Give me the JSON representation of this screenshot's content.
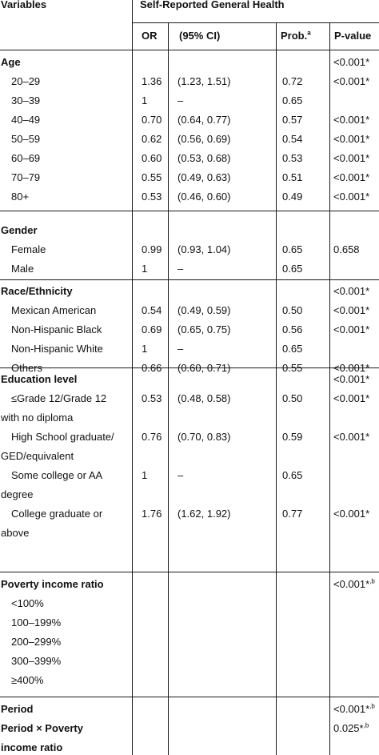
{
  "header": {
    "variables": "Variables",
    "group": "Self-Reported General Health",
    "or": "OR",
    "ci": "(95% CI)",
    "prob": "Prob.",
    "prob_sup": "a",
    "pvalue": "P-value"
  },
  "sections": [
    {
      "title": "Age",
      "title_p": "<0.001*",
      "rows": [
        {
          "label": "20–29",
          "or": "1.36",
          "ci": "(1.23, 1.51)",
          "prob": "0.72",
          "p": "<0.001*"
        },
        {
          "label": "30–39",
          "or": "1",
          "ci": "–",
          "prob": "0.65",
          "p": ""
        },
        {
          "label": "40–49",
          "or": "0.70",
          "ci": "(0.64, 0.77)",
          "prob": "0.57",
          "p": "<0.001*"
        },
        {
          "label": "50–59",
          "or": "0.62",
          "ci": "(0.56, 0.69)",
          "prob": "0.54",
          "p": "<0.001*"
        },
        {
          "label": "60–69",
          "or": "0.60",
          "ci": "(0.53, 0.68)",
          "prob": "0.53",
          "p": "<0.001*"
        },
        {
          "label": "70–79",
          "or": "0.55",
          "ci": "(0.49, 0.63)",
          "prob": "0.51",
          "p": "<0.001*"
        },
        {
          "label": "80+",
          "or": "0.53",
          "ci": "(0.46, 0.60)",
          "prob": "0.49",
          "p": "<0.001*"
        }
      ]
    },
    {
      "title": "Gender",
      "title_p": "",
      "rows": [
        {
          "label": "Female",
          "or": "0.99",
          "ci": "(0.93, 1.04)",
          "prob": "0.65",
          "p": "0.658"
        },
        {
          "label": "Male",
          "or": "1",
          "ci": "–",
          "prob": "0.65",
          "p": ""
        }
      ]
    },
    {
      "title": "Race/Ethnicity",
      "title_p": "<0.001*",
      "rows": [
        {
          "label": "Mexican American",
          "or": "0.54",
          "ci": "(0.49, 0.59)",
          "prob": "0.50",
          "p": "<0.001*"
        },
        {
          "label": "Non-Hispanic Black",
          "or": "0.69",
          "ci": "(0.65, 0.75)",
          "prob": "0.56",
          "p": "<0.001*"
        },
        {
          "label": "Non-Hispanic White",
          "or": "1",
          "ci": "–",
          "prob": "0.65",
          "p": ""
        },
        {
          "label": "Others",
          "or": "0.66",
          "ci": "(0.60, 0.71)",
          "prob": "0.55",
          "p": "<0.001*"
        }
      ]
    },
    {
      "title": "Education level",
      "title_p": "<0.001*",
      "rows": [
        {
          "label": "≤Grade 12/Grade 12",
          "label2": "with no diploma",
          "or": "0.53",
          "ci": "(0.48, 0.58)",
          "prob": "0.50",
          "p": "<0.001*"
        },
        {
          "label": "High School graduate/",
          "label2": "GED/equivalent",
          "or": "0.76",
          "ci": "(0.70, 0.83)",
          "prob": "0.59",
          "p": "<0.001*"
        },
        {
          "label": "Some college or AA",
          "label2": "degree",
          "or": "1",
          "ci": "–",
          "prob": "0.65",
          "p": ""
        },
        {
          "label": "College graduate or",
          "label2": "above",
          "or": "1.76",
          "ci": "(1.62, 1.92)",
          "prob": "0.77",
          "p": "<0.001*"
        }
      ]
    },
    {
      "title": "Poverty income ratio",
      "title_p": "<0.001*",
      "title_p_sup": ",b",
      "rows": [
        {
          "label": "<100%"
        },
        {
          "label": "100–199%"
        },
        {
          "label": "200–299%"
        },
        {
          "label": "300–399%"
        },
        {
          "label": "≥400%"
        }
      ]
    },
    {
      "title": "Period",
      "title_p": "<0.001*",
      "title_p_sup": ",b",
      "rows": [
        {
          "label": "Period × Poverty",
          "label2": "income ratio",
          "bold": true,
          "p": "0.025*",
          "p_sup": ",b"
        }
      ]
    }
  ]
}
